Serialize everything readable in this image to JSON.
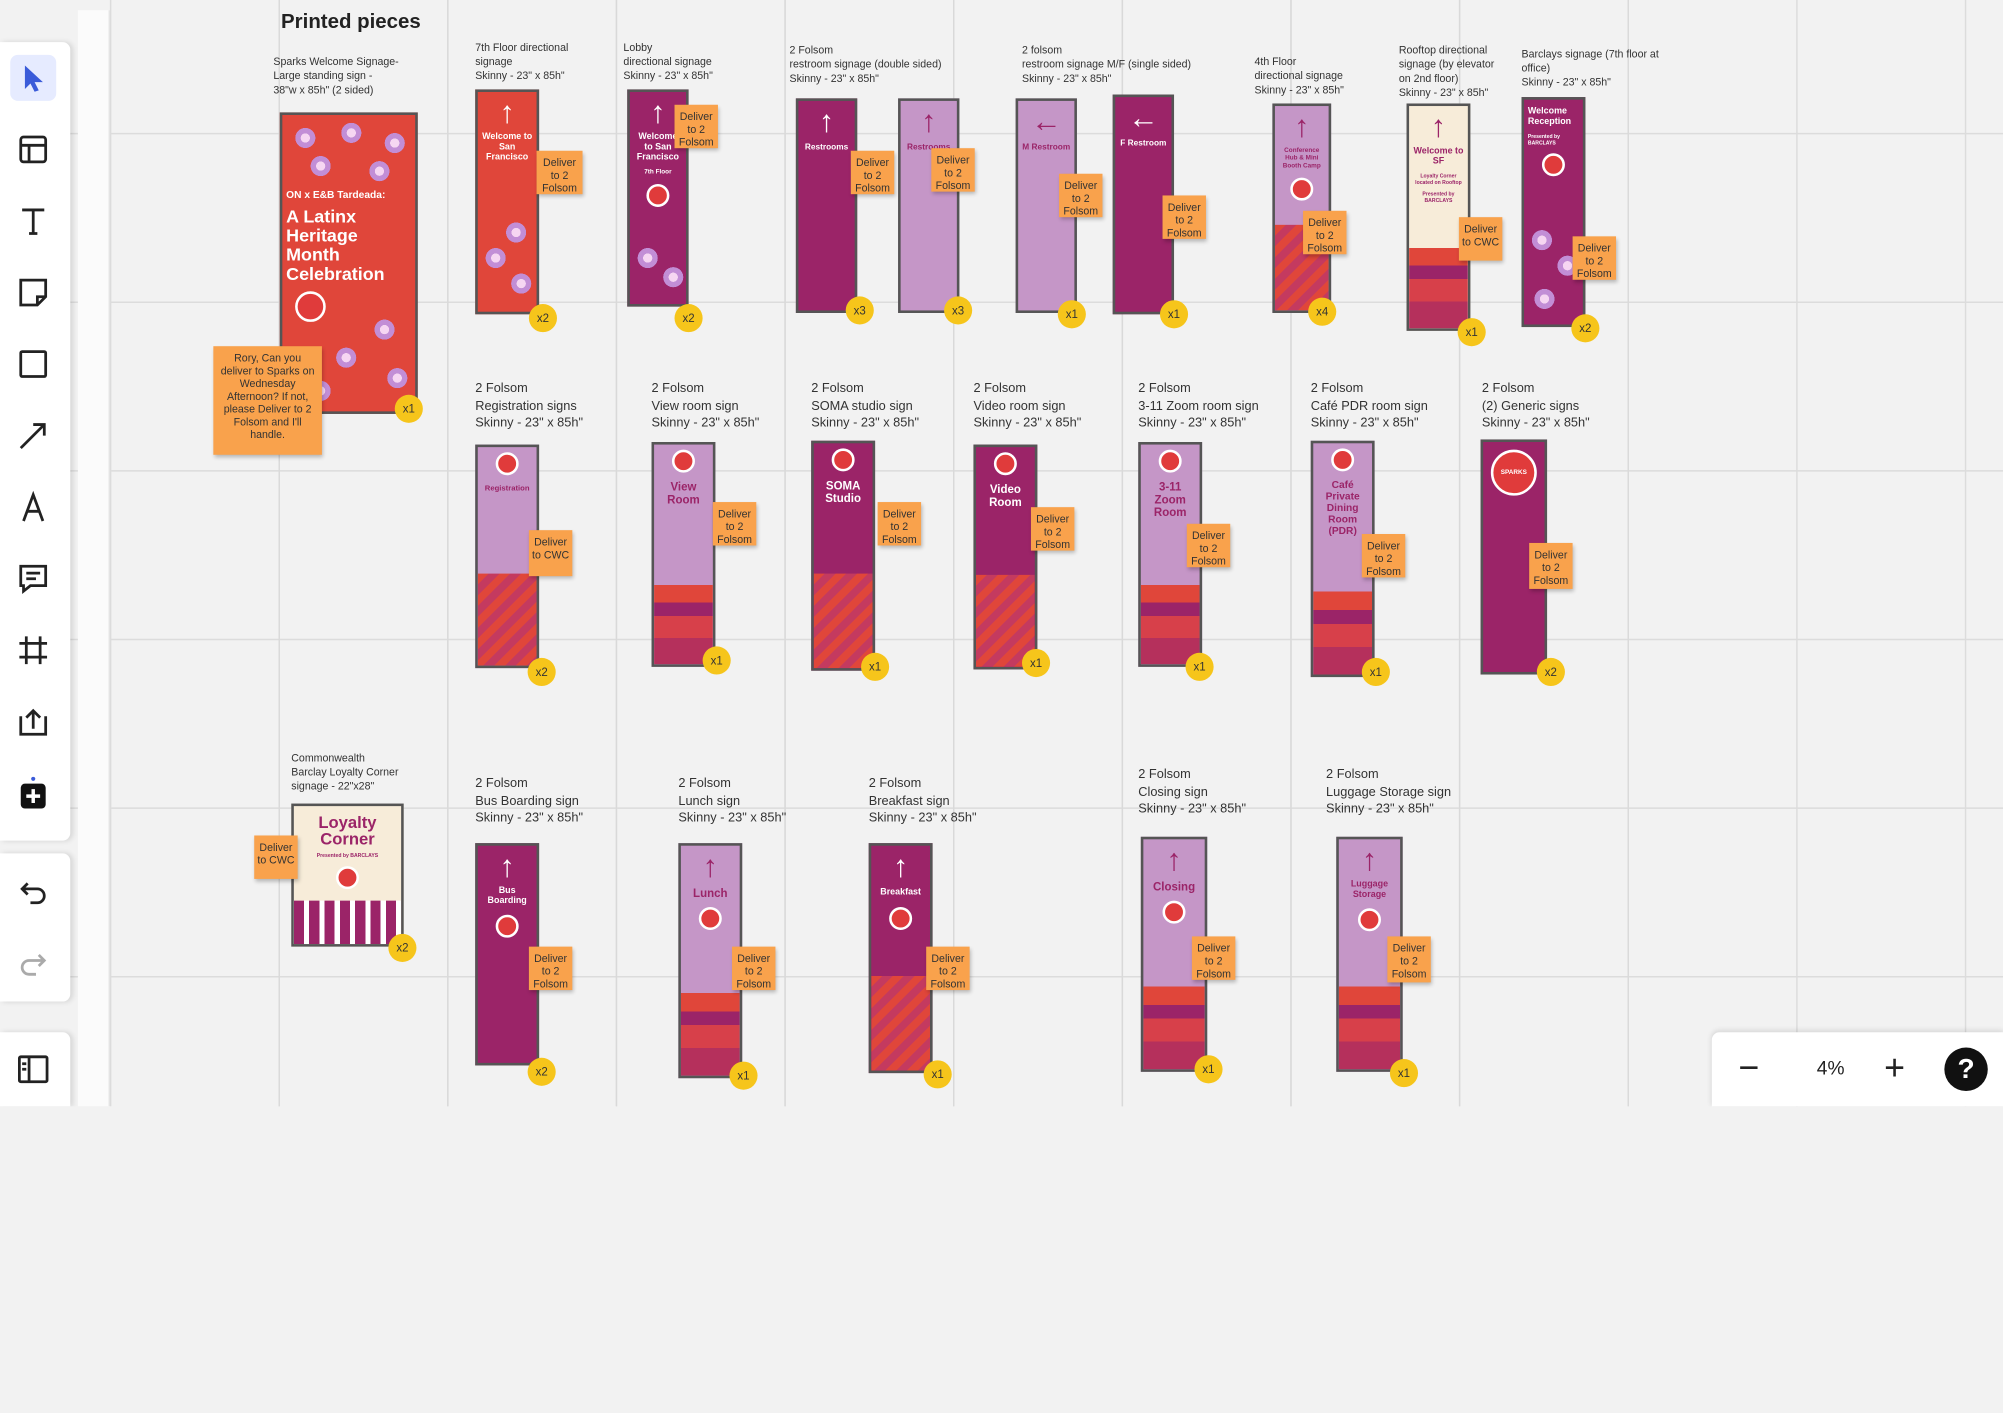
{
  "board": {
    "title": "Printed pieces",
    "zoom": "4%",
    "captions": {
      "sparks": "Sparks Welcome Signage-\nLarge standing sign -\n38\"w x 85h\" (2 sided)",
      "floor7": "7th Floor directional\nsignage\nSkinny - 23\" x 85h\"",
      "lobby": "Lobby\ndirectional signage\nSkinny - 23\" x 85h\"",
      "restroom_ds": "2 Folsom\nrestroom signage (double sided)\nSkinny - 23\" x 85h\"",
      "restroom_ss": "2 folsom\nrestroom signage M/F (single sided)\nSkinny - 23\" x 85h\"",
      "floor4": "4th Floor\ndirectional signage\nSkinny - 23\" x 85h\"",
      "rooftop": "Rooftop directional\nsignage (by elevator\non 2nd floor)\nSkinny - 23\" x 85h\"",
      "barclays": "Barclays signage (7th floor at\noffice)\nSkinny - 23\" x 85h\"",
      "registration": "2 Folsom\nRegistration signs\nSkinny - 23\" x 85h\"",
      "view": "2 Folsom\nView room sign\nSkinny - 23\" x 85h\"",
      "soma": "2 Folsom\nSOMA studio sign\nSkinny - 23\" x 85h\"",
      "video": "2 Folsom\nVideo room sign\nSkinny - 23\" x 85h\"",
      "zoom311": "2 Folsom\n3-11 Zoom room sign\nSkinny - 23\" x 85h\"",
      "cafe": "2 Folsom\nCafé PDR room sign\nSkinny - 23\" x 85h\"",
      "generic": "2 Folsom\n(2) Generic signs\nSkinny - 23\" x 85h\"",
      "loyalty": "Commonwealth\nBarclay Loyalty Corner\nsignage - 22\"x28\"",
      "bus": "2 Folsom\nBus Boarding sign\nSkinny - 23\" x 85h\"",
      "lunch": "2 Folsom\nLunch sign\nSkinny - 23\" x 85h\"",
      "breakfast": "2 Folsom\nBreakfast sign\nSkinny - 23\" x 85h\"",
      "closing": "2 Folsom\nClosing sign\nSkinny - 23\" x 85h\"",
      "luggage": "2 Folsom\nLuggage Storage sign\nSkinny - 23\" x 85h\""
    },
    "sign_text": {
      "sparks_small": "ON x E&B Tardeada:",
      "sparks_big": "A Latinx Heritage Month Celebration",
      "floor7": "Welcome to San Francisco",
      "lobby": "Welcome to San Francisco",
      "lobby_sub": "7th Floor",
      "restrooms": "Restrooms",
      "m_restroom": "M Restroom",
      "f_restroom": "F Restroom",
      "floor4": "Conference Hub & Mini Booth Camp",
      "rooftop": "Welcome to SF",
      "rooftop_sub": "Loyalty Corner located on Rooftop",
      "rooftop_brand": "Presented by BARCLAYS",
      "barclays": "Welcome Reception",
      "barclays_sub": "Presented by BARCLAYS",
      "registration": "Registration",
      "view": "View Room",
      "soma": "SOMA Studio",
      "video": "Video Room",
      "zoom311": "3-11 Zoom Room",
      "cafe": "Café Private Dining Room (PDR)",
      "generic": "SPARKS",
      "loyalty": "Loyalty Corner",
      "loyalty_sub": "Presented by BARCLAYS",
      "bus": "Bus Boarding",
      "lunch": "Lunch",
      "breakfast": "Breakfast",
      "closing": "Closing",
      "luggage": "Luggage Storage"
    },
    "notes": {
      "folsom": "Deliver\nto 2\nFolsom",
      "cwc": "Deliver\nto CWC",
      "rory": "Rory, Can you\ndeliver to Sparks on\nWednesday\nAfternoon? If not,\nplease Deliver to 2\nFolsom and I'll\nhandle."
    },
    "counts": {
      "sparks": "x1",
      "floor7": "x2",
      "lobby": "x2",
      "restroom_a": "x3",
      "restroom_b": "x3",
      "m": "x1",
      "f": "x1",
      "floor4": "x4",
      "rooftop": "x1",
      "barclays": "x2",
      "registration": "x2",
      "view": "x1",
      "soma": "x1",
      "video": "x1",
      "zoom311": "x1",
      "cafe": "x1",
      "generic": "x2",
      "loyalty": "x2",
      "bus": "x2",
      "lunch": "x1",
      "breakfast": "x1",
      "closing": "x1",
      "luggage": "x1"
    }
  },
  "toolbar": [
    "select-tool",
    "templates-tool",
    "text-tool",
    "sticky-note-tool",
    "shape-tool",
    "line-tool",
    "pen-tool",
    "comment-tool",
    "frame-tool",
    "upload-tool",
    "more-apps-tool"
  ],
  "colors": {
    "plum": "#9b2468",
    "lilac": "#c596c7",
    "red": "#e0463a",
    "note": "#f9a24c",
    "badge": "#f6c51b"
  }
}
